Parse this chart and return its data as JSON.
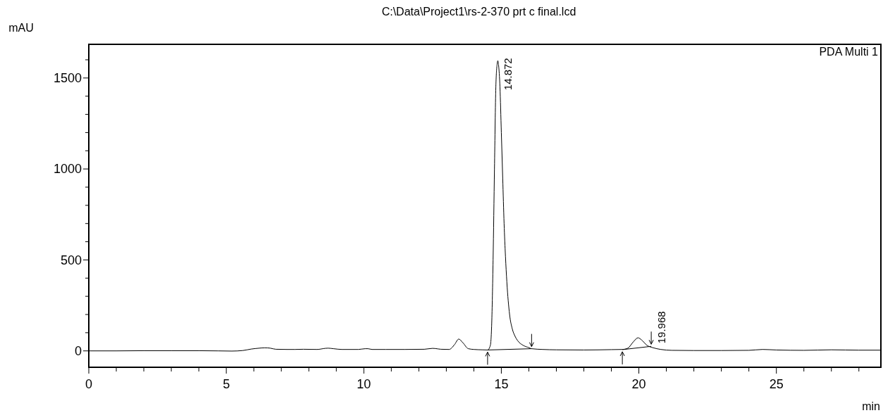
{
  "chart_data": {
    "type": "line",
    "title": "C:\\Data\\Project1\\rs-2-370 prt c final.lcd",
    "xlabel": "min",
    "ylabel": "mAU",
    "annotations": [
      "PDA Multi 1",
      {
        "text": "14.872",
        "x": 14.872,
        "y": 1595
      },
      {
        "text": "19.968",
        "x": 20.45,
        "y": 25
      }
    ],
    "xlim": [
      0,
      28.8
    ],
    "ylim": [
      -90,
      1685
    ],
    "xticks": [
      0,
      {
        "value": 1,
        "label": null
      },
      {
        "value": 2,
        "label": null
      },
      {
        "value": 3,
        "label": null
      },
      {
        "value": 4,
        "label": null
      },
      5,
      {
        "value": 6,
        "label": null
      },
      {
        "value": 7,
        "label": null
      },
      {
        "value": 8,
        "label": null
      },
      {
        "value": 9,
        "label": null
      },
      10,
      {
        "value": 11,
        "label": null
      },
      {
        "value": 12,
        "label": null
      },
      {
        "value": 13,
        "label": null
      },
      {
        "value": 14,
        "label": null
      },
      15,
      {
        "value": 16,
        "label": null
      },
      {
        "value": 17,
        "label": null
      },
      {
        "value": 18,
        "label": null
      },
      {
        "value": 19,
        "label": null
      },
      20,
      {
        "value": 21,
        "label": null
      },
      {
        "value": 22,
        "label": null
      },
      {
        "value": 23,
        "label": null
      },
      {
        "value": 24,
        "label": null
      },
      25,
      {
        "value": 26,
        "label": null
      },
      {
        "value": 27,
        "label": null
      },
      {
        "value": 28,
        "label": null
      }
    ],
    "yticks": [
      0,
      {
        "value": 100,
        "label": null
      },
      {
        "value": 200,
        "label": null
      },
      {
        "value": 300,
        "label": null
      },
      {
        "value": 400,
        "label": null
      },
      500,
      {
        "value": 600,
        "label": null
      },
      {
        "value": 700,
        "label": null
      },
      {
        "value": 800,
        "label": null
      },
      {
        "value": 900,
        "label": null
      },
      1000,
      {
        "value": 1100,
        "label": null
      },
      {
        "value": 1200,
        "label": null
      },
      {
        "value": 1300,
        "label": null
      },
      {
        "value": 1400,
        "label": null
      },
      1500,
      {
        "value": 1600,
        "label": null
      }
    ],
    "grid": false,
    "series": [
      {
        "color": "#000000",
        "x": [
          0,
          1,
          2,
          3,
          4,
          4.7,
          5.2,
          5.6,
          5.9,
          6.2,
          6.4,
          6.6,
          6.8,
          7.2,
          7.5,
          7.8,
          8.3,
          8.6,
          8.7,
          8.9,
          9.2,
          9.8,
          10.05,
          10.15,
          10.3,
          10.8,
          11.5,
          12.2,
          12.5,
          12.6,
          12.8,
          13.1,
          13.3,
          13.45,
          13.6,
          13.8,
          14.0,
          14.3,
          14.5,
          14.6,
          14.65,
          14.7,
          14.75,
          14.8,
          14.85,
          14.872,
          14.9,
          14.95,
          15.0,
          15.05,
          15.1,
          15.15,
          15.2,
          15.3,
          15.4,
          15.5,
          15.6,
          15.8,
          16.0,
          16.1,
          16.5,
          17,
          18,
          19,
          19.4,
          19.6,
          19.8,
          19.97,
          20.1,
          20.3,
          20.5,
          20.8,
          21.2,
          22,
          23,
          24,
          24.5,
          25,
          26,
          27,
          28,
          28.8
        ],
        "values": [
          0,
          0,
          1,
          1,
          1,
          0,
          -1,
          2,
          10,
          15,
          17,
          15,
          9,
          8,
          8,
          9,
          8,
          14,
          15,
          12,
          8,
          8,
          12,
          12,
          8,
          8,
          8,
          9,
          14,
          13,
          9,
          8,
          35,
          65,
          45,
          12,
          8,
          6,
          5,
          30,
          150,
          500,
          1000,
          1450,
          1580,
          1595,
          1570,
          1450,
          1200,
          950,
          700,
          520,
          380,
          200,
          120,
          80,
          55,
          30,
          18,
          12,
          8,
          6,
          5,
          7,
          8,
          15,
          50,
          72,
          60,
          30,
          18,
          8,
          3,
          2,
          2,
          3,
          8,
          5,
          3,
          6,
          4,
          4
        ]
      },
      {
        "type": "line",
        "color": "#000000",
        "x": [
          14.5,
          16.1
        ],
        "values": [
          5,
          12
        ]
      },
      {
        "type": "line",
        "color": "#000000",
        "x": [
          19.4,
          20.45
        ],
        "values": [
          7,
          25
        ]
      }
    ]
  }
}
